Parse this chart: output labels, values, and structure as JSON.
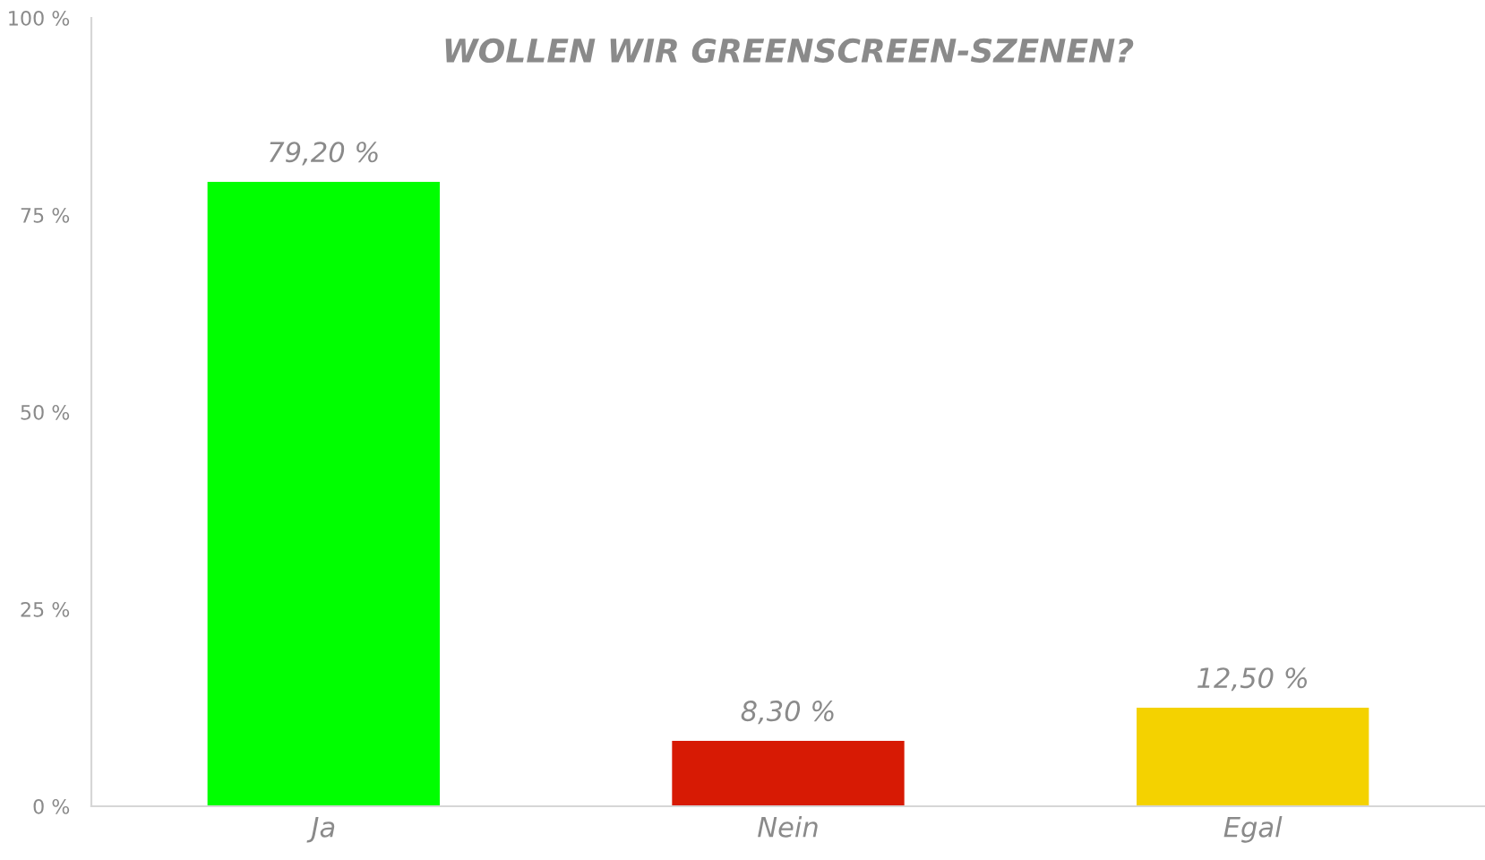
{
  "chart_data": {
    "type": "bar",
    "title": "WOLLEN WIR GREENSCREEN-SZENEN?",
    "categories": [
      "Ja",
      "Nein",
      "Egal"
    ],
    "values": [
      79.2,
      8.3,
      12.5
    ],
    "colors": [
      "#00ff00",
      "#d71a04",
      "#f4d200"
    ],
    "value_labels": [
      "79,20 %",
      "8,30 %",
      "12,50 %"
    ],
    "ylim": [
      0,
      100
    ],
    "yticks": [
      {
        "value": 0,
        "label": "0 %"
      },
      {
        "value": 25,
        "label": "25 %"
      },
      {
        "value": 50,
        "label": "50 %"
      },
      {
        "value": 75,
        "label": "75 %"
      },
      {
        "value": 100,
        "label": "100 %"
      }
    ],
    "grid": false,
    "legend": false
  }
}
